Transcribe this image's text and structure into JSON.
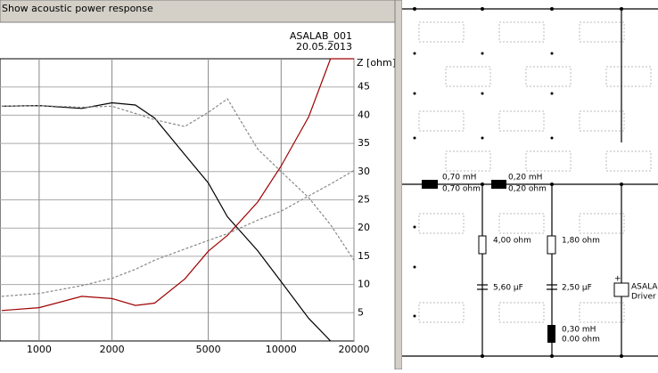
{
  "chart_data": {
    "type": "line",
    "title": "Show acoustic power response",
    "project": "ASALAB_001",
    "date": "20.05.2013",
    "y_label": "Z [ohm]",
    "x": [
      700,
      1000,
      1500,
      2000,
      2500,
      3000,
      4000,
      5000,
      6000,
      8000,
      10000,
      13000,
      16000,
      20000
    ],
    "xlog": true,
    "xlim": [
      689,
      20000
    ],
    "xticks": [
      1000,
      2000,
      5000,
      10000,
      20000
    ],
    "ylim": [
      0,
      50
    ],
    "yticks": [
      5,
      10,
      15,
      20,
      25,
      30,
      35,
      40,
      45
    ],
    "grid": true,
    "series": [
      {
        "color": "#000000",
        "style": "solid",
        "values": [
          41.6,
          41.7,
          41.2,
          42.2,
          41.8,
          39.5,
          33,
          28,
          22,
          16,
          10.5,
          4,
          0,
          null
        ]
      },
      {
        "color": "#a00000",
        "style": "solid",
        "values": [
          5.4,
          5.9,
          7.9,
          7.5,
          6.3,
          6.7,
          11,
          15.9,
          18.7,
          24.6,
          31,
          39.7,
          50,
          50
        ]
      },
      {
        "color": "#888888",
        "style": "dashed",
        "values": [
          41.6,
          41.7,
          41.4,
          41.6,
          40.3,
          39.2,
          38,
          40.5,
          42.9,
          34,
          30,
          25.4,
          20.6,
          14.3
        ]
      },
      {
        "color": "#888888",
        "style": "dashed",
        "values": [
          7.9,
          8.4,
          9.8,
          11.1,
          12.7,
          14.3,
          16.3,
          17.8,
          19,
          21.4,
          23,
          25.7,
          27.8,
          30.2
        ]
      }
    ]
  },
  "circuit": {
    "l1": [
      "0,70 mH",
      "0,70 ohm"
    ],
    "l2": [
      "0,20 mH",
      "0,20 ohm"
    ],
    "r1": "4,00 ohm",
    "c1": "5,60 µF",
    "r2": "1,80 ohm",
    "c2": "2,50 µF",
    "l3": [
      "0,30 mH",
      "0.00 ohm"
    ],
    "driver": [
      "ASALA",
      "Driver"
    ],
    "polarity": "+"
  }
}
